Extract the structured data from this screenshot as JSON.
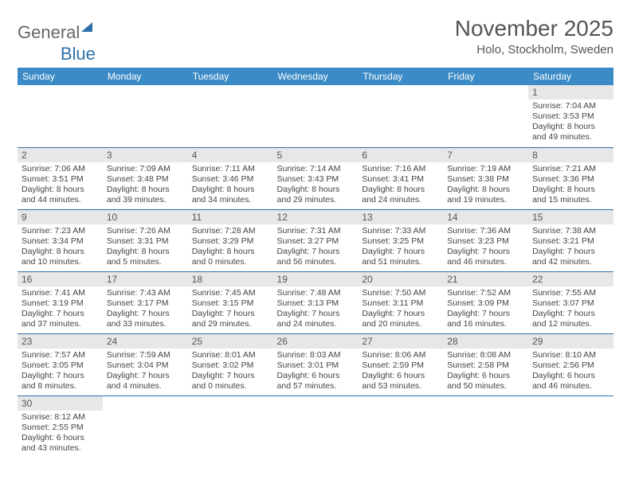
{
  "logo": {
    "general": "General",
    "blue": "Blue"
  },
  "title": "November 2025",
  "location": "Holo, Stockholm, Sweden",
  "colors": {
    "header_bg": "#3b8bc6",
    "header_text": "#ffffff",
    "daynum_bg": "#e7e7e7",
    "border": "#2f6fa7",
    "title_text": "#555555",
    "body_text": "#444444"
  },
  "weekdays": [
    "Sunday",
    "Monday",
    "Tuesday",
    "Wednesday",
    "Thursday",
    "Friday",
    "Saturday"
  ],
  "weeks": [
    [
      null,
      null,
      null,
      null,
      null,
      null,
      {
        "n": "1",
        "sr": "Sunrise: 7:04 AM",
        "ss": "Sunset: 3:53 PM",
        "d1": "Daylight: 8 hours",
        "d2": "and 49 minutes."
      }
    ],
    [
      {
        "n": "2",
        "sr": "Sunrise: 7:06 AM",
        "ss": "Sunset: 3:51 PM",
        "d1": "Daylight: 8 hours",
        "d2": "and 44 minutes."
      },
      {
        "n": "3",
        "sr": "Sunrise: 7:09 AM",
        "ss": "Sunset: 3:48 PM",
        "d1": "Daylight: 8 hours",
        "d2": "and 39 minutes."
      },
      {
        "n": "4",
        "sr": "Sunrise: 7:11 AM",
        "ss": "Sunset: 3:46 PM",
        "d1": "Daylight: 8 hours",
        "d2": "and 34 minutes."
      },
      {
        "n": "5",
        "sr": "Sunrise: 7:14 AM",
        "ss": "Sunset: 3:43 PM",
        "d1": "Daylight: 8 hours",
        "d2": "and 29 minutes."
      },
      {
        "n": "6",
        "sr": "Sunrise: 7:16 AM",
        "ss": "Sunset: 3:41 PM",
        "d1": "Daylight: 8 hours",
        "d2": "and 24 minutes."
      },
      {
        "n": "7",
        "sr": "Sunrise: 7:19 AM",
        "ss": "Sunset: 3:38 PM",
        "d1": "Daylight: 8 hours",
        "d2": "and 19 minutes."
      },
      {
        "n": "8",
        "sr": "Sunrise: 7:21 AM",
        "ss": "Sunset: 3:36 PM",
        "d1": "Daylight: 8 hours",
        "d2": "and 15 minutes."
      }
    ],
    [
      {
        "n": "9",
        "sr": "Sunrise: 7:23 AM",
        "ss": "Sunset: 3:34 PM",
        "d1": "Daylight: 8 hours",
        "d2": "and 10 minutes."
      },
      {
        "n": "10",
        "sr": "Sunrise: 7:26 AM",
        "ss": "Sunset: 3:31 PM",
        "d1": "Daylight: 8 hours",
        "d2": "and 5 minutes."
      },
      {
        "n": "11",
        "sr": "Sunrise: 7:28 AM",
        "ss": "Sunset: 3:29 PM",
        "d1": "Daylight: 8 hours",
        "d2": "and 0 minutes."
      },
      {
        "n": "12",
        "sr": "Sunrise: 7:31 AM",
        "ss": "Sunset: 3:27 PM",
        "d1": "Daylight: 7 hours",
        "d2": "and 56 minutes."
      },
      {
        "n": "13",
        "sr": "Sunrise: 7:33 AM",
        "ss": "Sunset: 3:25 PM",
        "d1": "Daylight: 7 hours",
        "d2": "and 51 minutes."
      },
      {
        "n": "14",
        "sr": "Sunrise: 7:36 AM",
        "ss": "Sunset: 3:23 PM",
        "d1": "Daylight: 7 hours",
        "d2": "and 46 minutes."
      },
      {
        "n": "15",
        "sr": "Sunrise: 7:38 AM",
        "ss": "Sunset: 3:21 PM",
        "d1": "Daylight: 7 hours",
        "d2": "and 42 minutes."
      }
    ],
    [
      {
        "n": "16",
        "sr": "Sunrise: 7:41 AM",
        "ss": "Sunset: 3:19 PM",
        "d1": "Daylight: 7 hours",
        "d2": "and 37 minutes."
      },
      {
        "n": "17",
        "sr": "Sunrise: 7:43 AM",
        "ss": "Sunset: 3:17 PM",
        "d1": "Daylight: 7 hours",
        "d2": "and 33 minutes."
      },
      {
        "n": "18",
        "sr": "Sunrise: 7:45 AM",
        "ss": "Sunset: 3:15 PM",
        "d1": "Daylight: 7 hours",
        "d2": "and 29 minutes."
      },
      {
        "n": "19",
        "sr": "Sunrise: 7:48 AM",
        "ss": "Sunset: 3:13 PM",
        "d1": "Daylight: 7 hours",
        "d2": "and 24 minutes."
      },
      {
        "n": "20",
        "sr": "Sunrise: 7:50 AM",
        "ss": "Sunset: 3:11 PM",
        "d1": "Daylight: 7 hours",
        "d2": "and 20 minutes."
      },
      {
        "n": "21",
        "sr": "Sunrise: 7:52 AM",
        "ss": "Sunset: 3:09 PM",
        "d1": "Daylight: 7 hours",
        "d2": "and 16 minutes."
      },
      {
        "n": "22",
        "sr": "Sunrise: 7:55 AM",
        "ss": "Sunset: 3:07 PM",
        "d1": "Daylight: 7 hours",
        "d2": "and 12 minutes."
      }
    ],
    [
      {
        "n": "23",
        "sr": "Sunrise: 7:57 AM",
        "ss": "Sunset: 3:05 PM",
        "d1": "Daylight: 7 hours",
        "d2": "and 8 minutes."
      },
      {
        "n": "24",
        "sr": "Sunrise: 7:59 AM",
        "ss": "Sunset: 3:04 PM",
        "d1": "Daylight: 7 hours",
        "d2": "and 4 minutes."
      },
      {
        "n": "25",
        "sr": "Sunrise: 8:01 AM",
        "ss": "Sunset: 3:02 PM",
        "d1": "Daylight: 7 hours",
        "d2": "and 0 minutes."
      },
      {
        "n": "26",
        "sr": "Sunrise: 8:03 AM",
        "ss": "Sunset: 3:01 PM",
        "d1": "Daylight: 6 hours",
        "d2": "and 57 minutes."
      },
      {
        "n": "27",
        "sr": "Sunrise: 8:06 AM",
        "ss": "Sunset: 2:59 PM",
        "d1": "Daylight: 6 hours",
        "d2": "and 53 minutes."
      },
      {
        "n": "28",
        "sr": "Sunrise: 8:08 AM",
        "ss": "Sunset: 2:58 PM",
        "d1": "Daylight: 6 hours",
        "d2": "and 50 minutes."
      },
      {
        "n": "29",
        "sr": "Sunrise: 8:10 AM",
        "ss": "Sunset: 2:56 PM",
        "d1": "Daylight: 6 hours",
        "d2": "and 46 minutes."
      }
    ],
    [
      {
        "n": "30",
        "sr": "Sunrise: 8:12 AM",
        "ss": "Sunset: 2:55 PM",
        "d1": "Daylight: 6 hours",
        "d2": "and 43 minutes."
      },
      null,
      null,
      null,
      null,
      null,
      null
    ]
  ]
}
